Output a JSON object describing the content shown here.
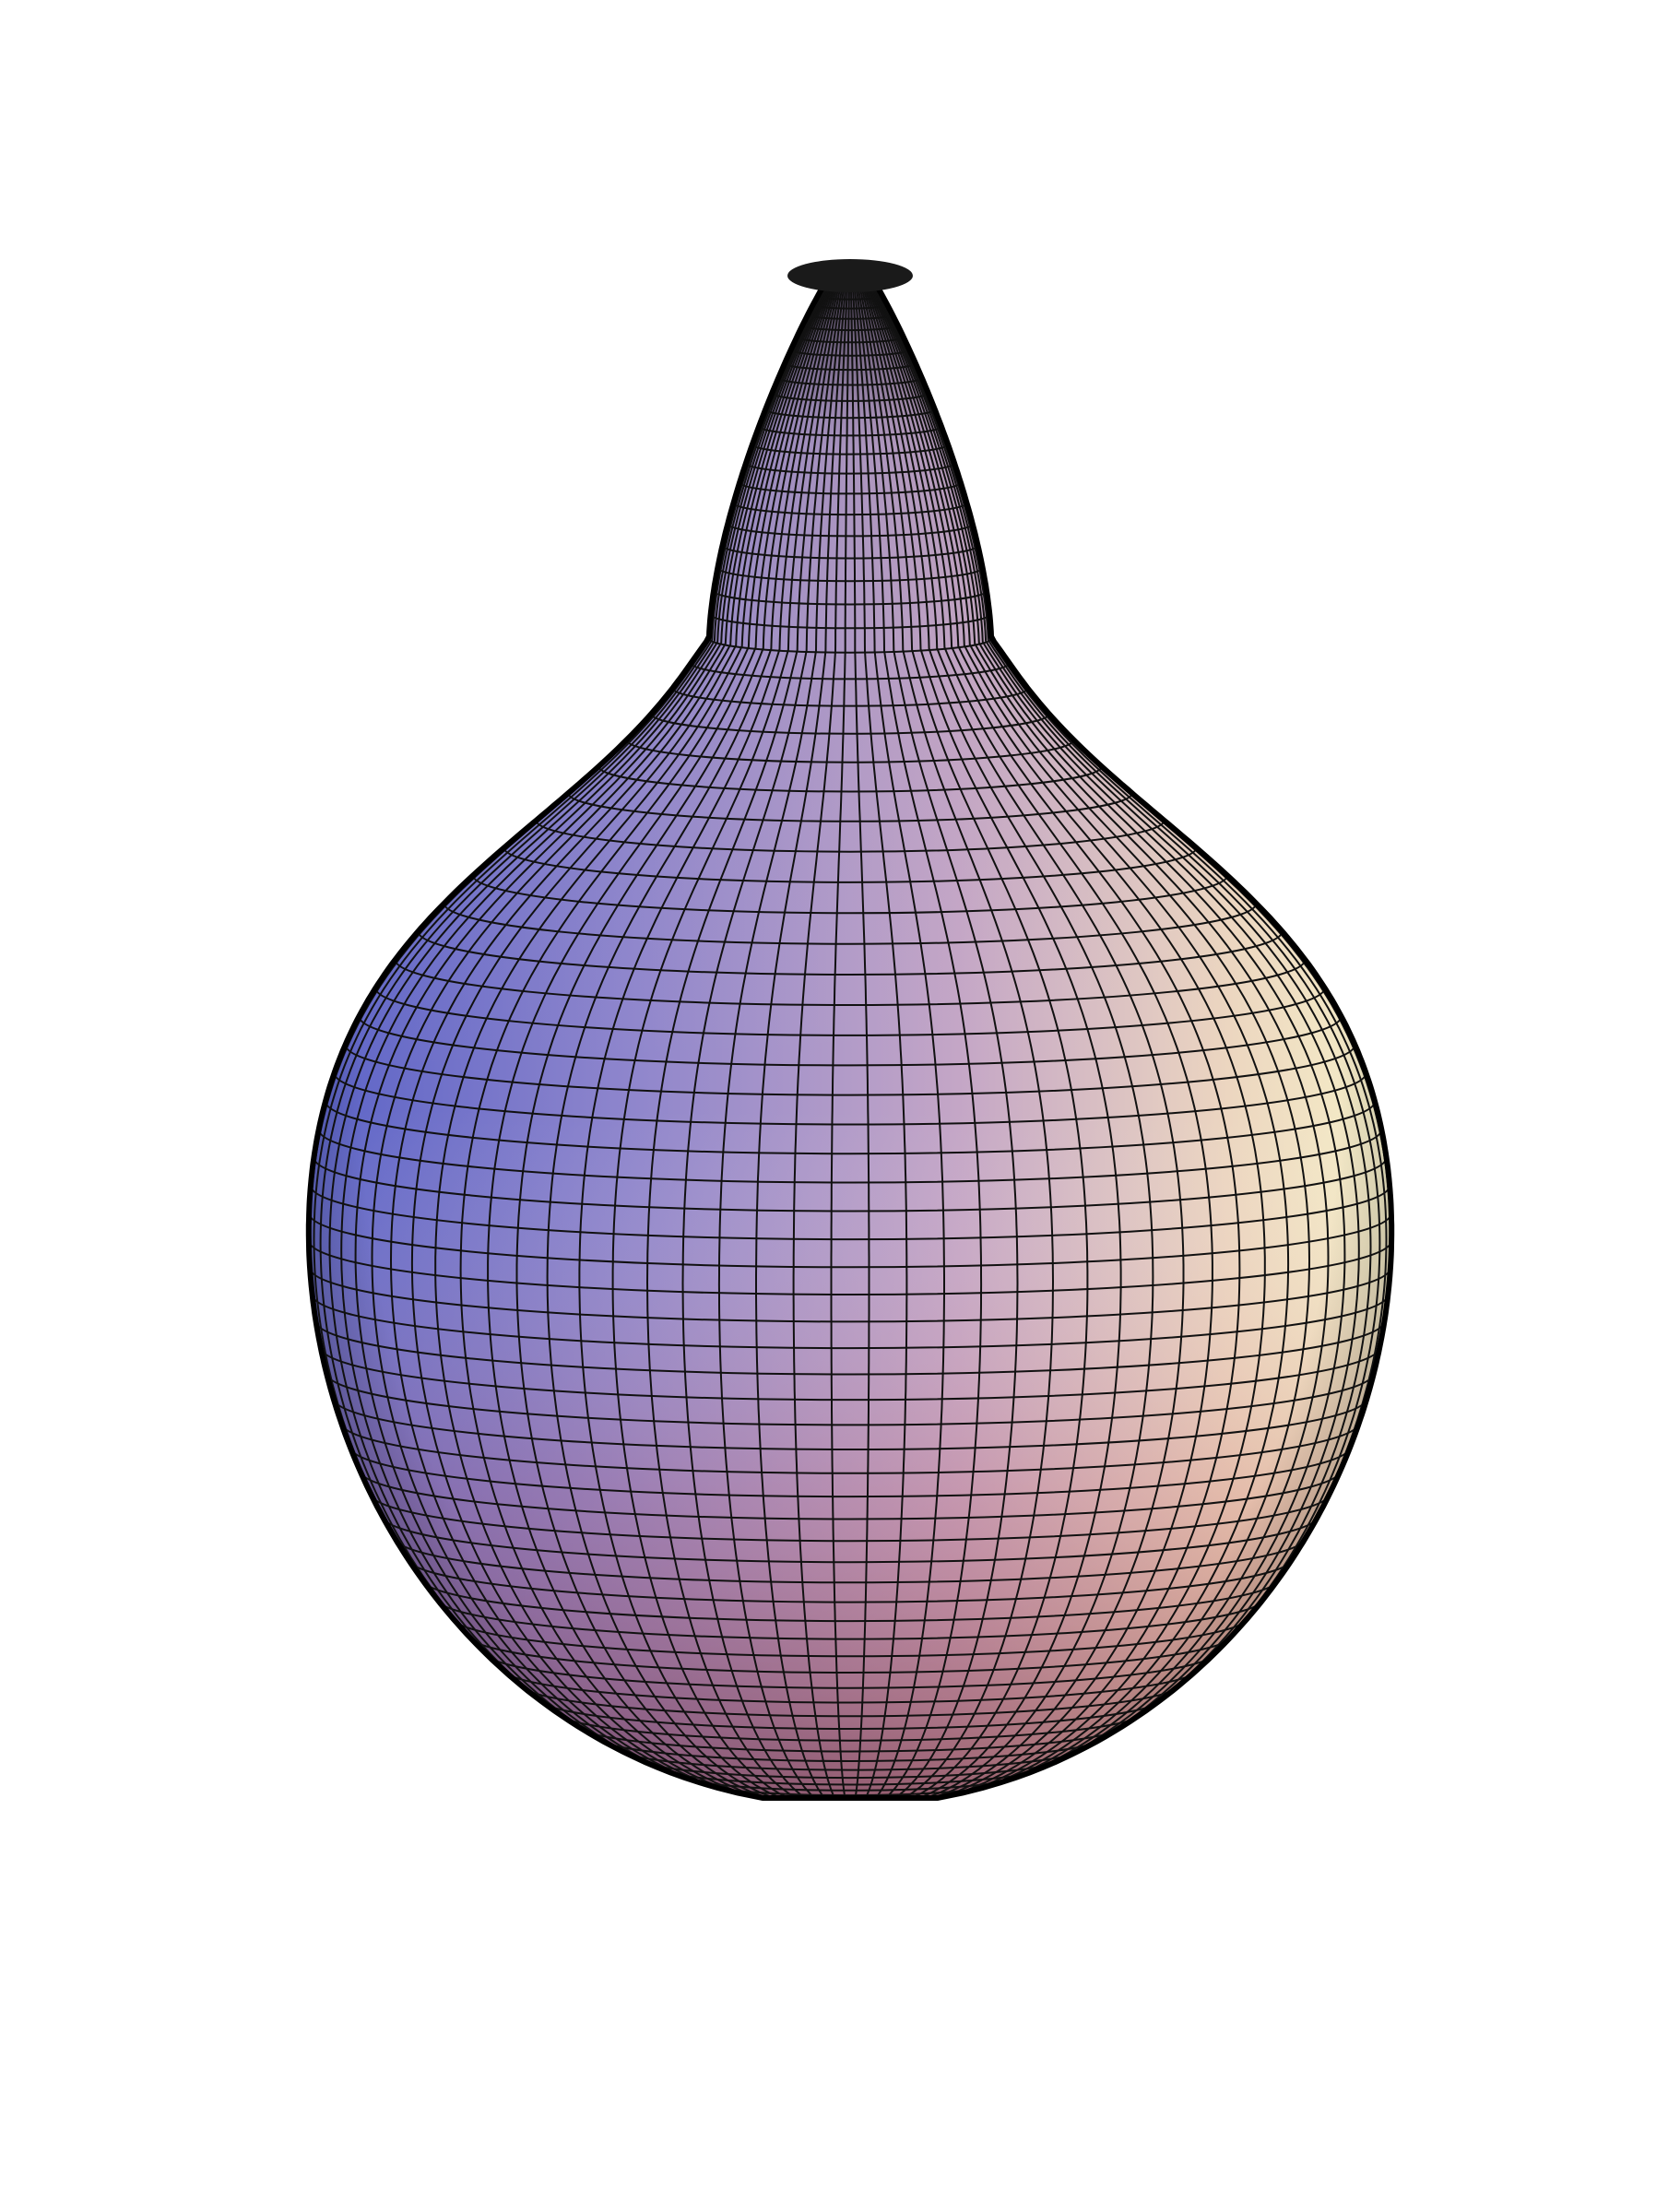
{
  "figure": {
    "kind": "surface-of-revolution-mesh-plot",
    "shape": "teardrop / pear",
    "grid": true,
    "background_color": "#ffffff",
    "mesh_line_color": "#111111",
    "outline_color": "#000000",
    "shading_colors": {
      "left_blue": "#6f78d8",
      "center_lavender": "#b6a0c8",
      "right_cream": "#f3e9c4",
      "bottom_rose": "#c9797a",
      "tip_dark": "#1a1a1a"
    },
    "mesh": {
      "meridian_count": 90,
      "parallel_count": 85
    }
  }
}
